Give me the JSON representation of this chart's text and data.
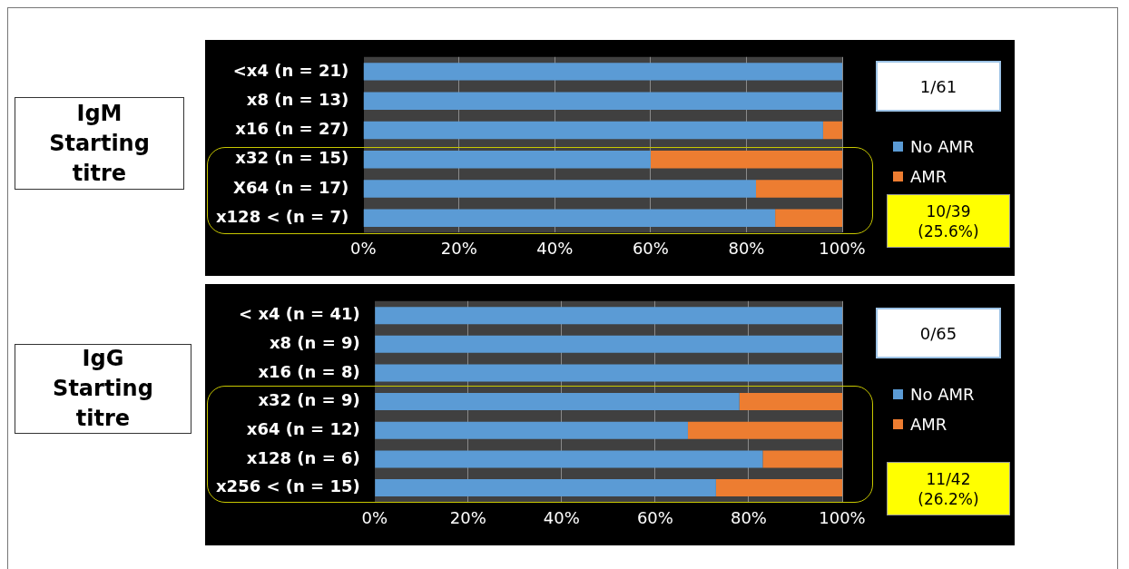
{
  "chart_data": [
    {
      "type": "bar",
      "title": "IgM Starting titre",
      "orientation": "horizontal",
      "stacked": true,
      "categories": [
        "<x4 (n = 21)",
        "x8 (n = 13)",
        "x16 (n = 27)",
        "x32 (n = 15)",
        "X64 (n = 17)",
        "x128 < (n = 7)"
      ],
      "series": [
        {
          "name": "No AMR",
          "color": "#5b9bd5",
          "values": [
            100,
            100,
            96,
            60,
            82,
            86
          ]
        },
        {
          "name": "AMR",
          "color": "#ed7d31",
          "values": [
            0,
            0,
            4,
            40,
            18,
            14
          ]
        }
      ],
      "xlim": [
        0,
        100
      ],
      "xticks": [
        {
          "value": 0,
          "label": "0%"
        },
        {
          "value": 20,
          "label": "20%"
        },
        {
          "value": 40,
          "label": "40%"
        },
        {
          "value": 60,
          "label": "60%"
        },
        {
          "value": 80,
          "label": "80%"
        },
        {
          "value": 100,
          "label": "100%"
        }
      ],
      "grid": "x",
      "legend": "right",
      "annotations": [
        "1/61",
        "10/39 (25.6%)"
      ]
    },
    {
      "type": "bar",
      "title": "IgG Starting titre",
      "orientation": "horizontal",
      "stacked": true,
      "categories": [
        "< x4 (n = 41)",
        "x8 (n = 9)",
        "x16 (n = 8)",
        "x32 (n = 9)",
        "x64 (n = 12)",
        "x128 (n = 6)",
        "x256 < (n = 15)"
      ],
      "series": [
        {
          "name": "No AMR",
          "color": "#5b9bd5",
          "values": [
            100,
            100,
            100,
            78,
            67,
            83,
            73
          ]
        },
        {
          "name": "AMR",
          "color": "#ed7d31",
          "values": [
            0,
            0,
            0,
            22,
            33,
            17,
            27
          ]
        }
      ],
      "xlim": [
        0,
        100
      ],
      "xticks": [
        {
          "value": 0,
          "label": "0%"
        },
        {
          "value": 20,
          "label": "20%"
        },
        {
          "value": 40,
          "label": "40%"
        },
        {
          "value": 60,
          "label": "60%"
        },
        {
          "value": 80,
          "label": "80%"
        },
        {
          "value": 100,
          "label": "100%"
        }
      ],
      "grid": "x",
      "legend": "right",
      "annotations": [
        "0/65",
        "11/42 (26.2%)"
      ]
    }
  ]
}
